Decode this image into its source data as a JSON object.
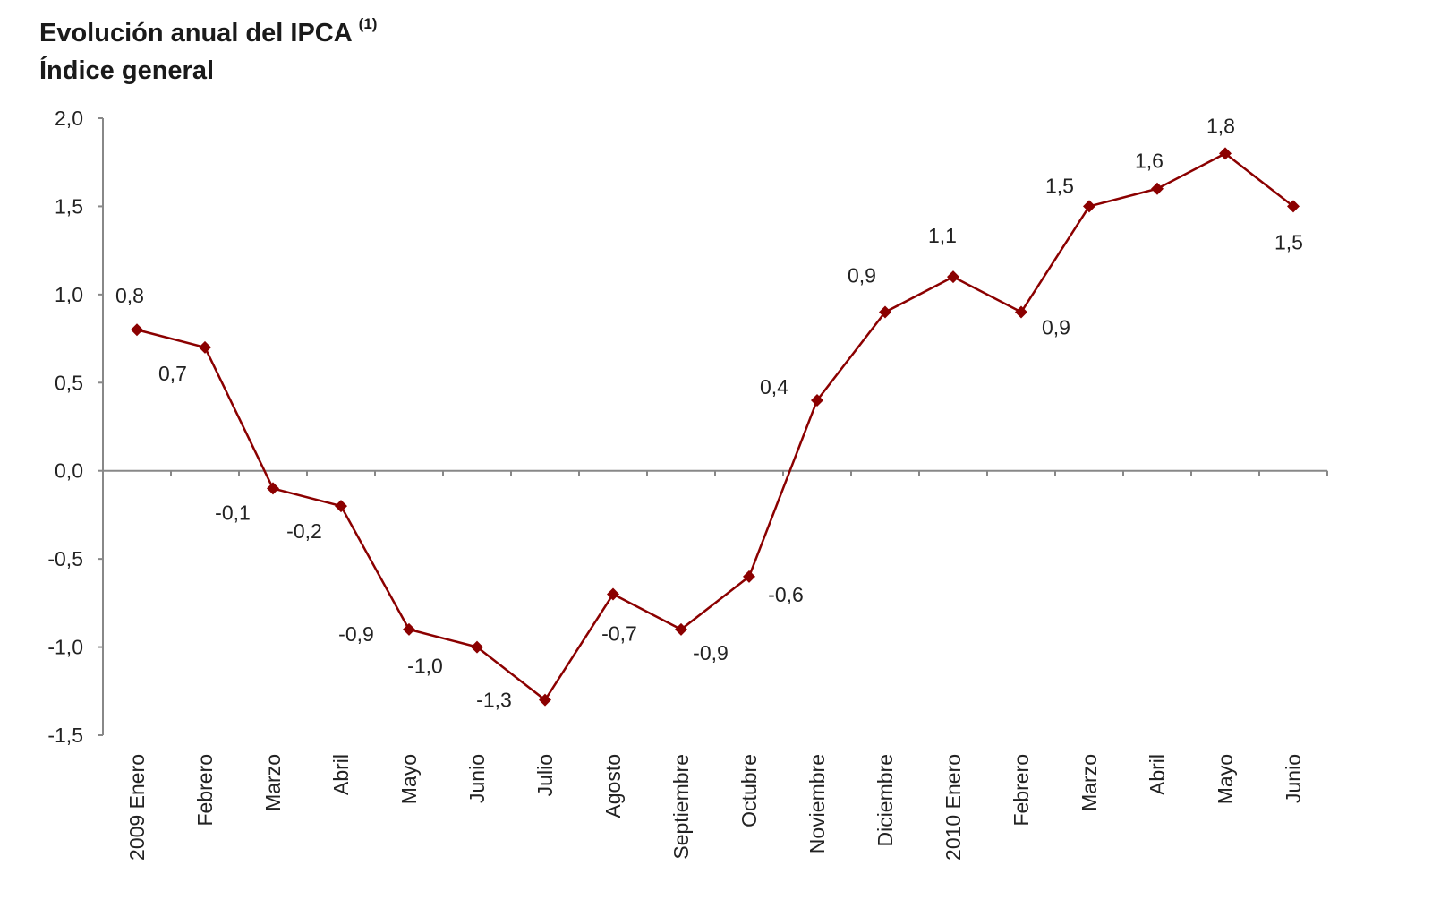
{
  "chart_data": {
    "type": "line",
    "title": "Evolución anual del IPCA",
    "title_note": "(1)",
    "subtitle": "Índice general",
    "categories": [
      "2009 Enero",
      "Febrero",
      "Marzo",
      "Abril",
      "Mayo",
      "Junio",
      "Julio",
      "Agosto",
      "Septiembre",
      "Octubre",
      "Noviembre",
      "Diciembre",
      "2010 Enero",
      "Febrero",
      "Marzo",
      "Abril",
      "Mayo",
      "Junio"
    ],
    "values": [
      0.8,
      0.7,
      -0.1,
      -0.2,
      -0.9,
      -1.0,
      -1.3,
      -0.7,
      -0.9,
      -0.6,
      0.4,
      0.9,
      1.1,
      0.9,
      1.5,
      1.6,
      1.8,
      1.5
    ],
    "data_labels": [
      "0,8",
      "0,7",
      "-0,1",
      "-0,2",
      "-0,9",
      "-1,0",
      "-1,3",
      "-0,7",
      "-0,9",
      "-0,6",
      "0,4",
      "0,9",
      "1,1",
      "0,9",
      "1,5",
      "1,6",
      "1,8",
      "1,5"
    ],
    "ylim": [
      -1.5,
      2.0
    ],
    "yticks": [
      2.0,
      1.5,
      1.0,
      0.5,
      0.0,
      -0.5,
      -1.0,
      -1.5
    ],
    "ytick_labels": [
      "2,0",
      "1,5",
      "1,0",
      "0,5",
      "0,0",
      "-0,5",
      "-1,0",
      "-1,5"
    ],
    "xlabel": "",
    "ylabel": "",
    "grid": false,
    "marker": "diamond",
    "line_color": "#8b0000"
  }
}
